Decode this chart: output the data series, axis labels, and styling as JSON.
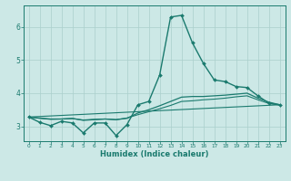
{
  "xlabel": "Humidex (Indice chaleur)",
  "bg_color": "#cce8e6",
  "line_color": "#1a7a6e",
  "grid_color": "#aacfcc",
  "xlim": [
    -0.5,
    23.5
  ],
  "ylim": [
    2.55,
    6.65
  ],
  "yticks": [
    3,
    4,
    5,
    6
  ],
  "xticks": [
    0,
    1,
    2,
    3,
    4,
    5,
    6,
    7,
    8,
    9,
    10,
    11,
    12,
    13,
    14,
    15,
    16,
    17,
    18,
    19,
    20,
    21,
    22,
    23
  ],
  "series1_x": [
    0,
    1,
    2,
    3,
    4,
    5,
    6,
    7,
    8,
    9,
    10,
    11,
    12,
    13,
    14,
    15,
    16,
    17,
    18,
    19,
    20,
    21,
    22,
    23
  ],
  "series1_y": [
    3.28,
    3.12,
    3.02,
    3.15,
    3.1,
    2.8,
    3.1,
    3.1,
    2.72,
    3.05,
    3.65,
    3.75,
    4.55,
    6.3,
    6.35,
    5.52,
    4.9,
    4.4,
    4.35,
    4.2,
    4.17,
    3.92,
    3.7,
    3.65
  ],
  "series2_x": [
    0,
    1,
    2,
    3,
    4,
    5,
    6,
    7,
    8,
    9,
    10,
    11,
    12,
    13,
    14,
    15,
    16,
    17,
    18,
    19,
    20,
    21,
    22,
    23
  ],
  "series2_y": [
    3.28,
    3.25,
    3.22,
    3.22,
    3.24,
    3.18,
    3.2,
    3.22,
    3.2,
    3.24,
    3.4,
    3.5,
    3.62,
    3.75,
    3.88,
    3.9,
    3.9,
    3.92,
    3.94,
    3.97,
    4.0,
    3.85,
    3.73,
    3.65
  ],
  "series3_x": [
    0,
    1,
    2,
    3,
    4,
    5,
    6,
    7,
    8,
    9,
    10,
    11,
    12,
    13,
    14,
    15,
    16,
    17,
    18,
    19,
    20,
    21,
    22,
    23
  ],
  "series3_y": [
    3.28,
    3.24,
    3.21,
    3.22,
    3.23,
    3.19,
    3.21,
    3.22,
    3.2,
    3.25,
    3.35,
    3.44,
    3.53,
    3.63,
    3.75,
    3.77,
    3.8,
    3.82,
    3.85,
    3.89,
    3.92,
    3.8,
    3.69,
    3.64
  ],
  "series4_x": [
    0,
    23
  ],
  "series4_y": [
    3.28,
    3.65
  ]
}
